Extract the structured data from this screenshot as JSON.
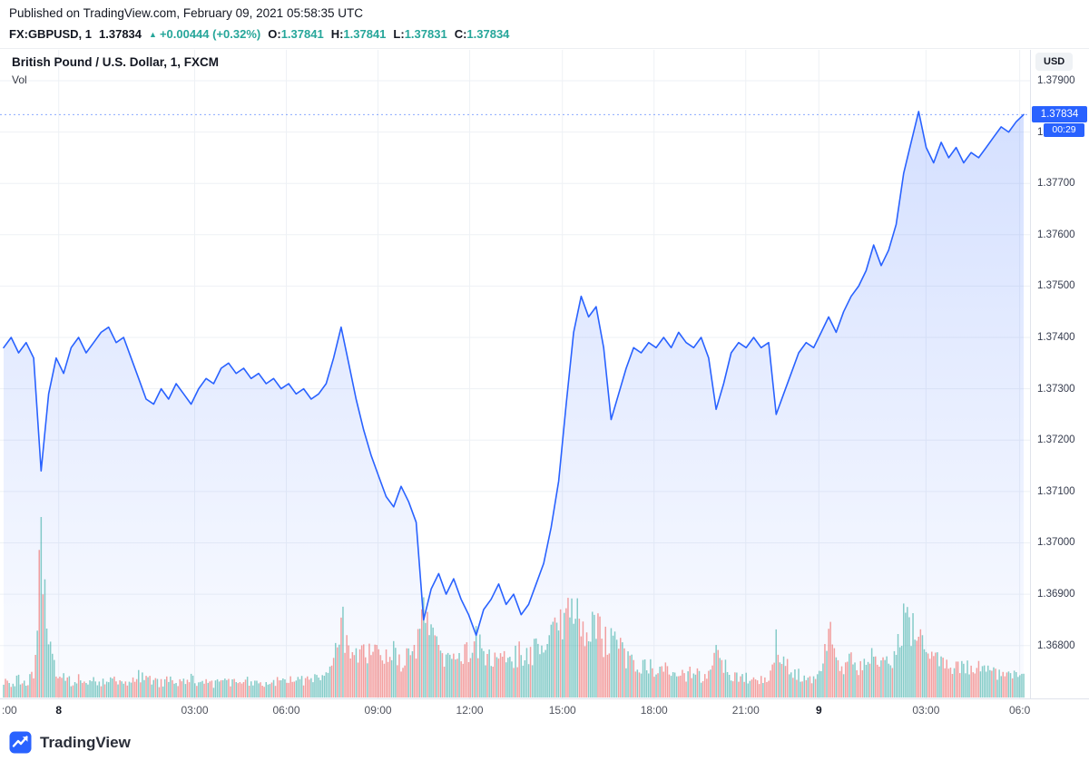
{
  "published_line": "Published on TradingView.com, February 09, 2021 05:58:35 UTC",
  "symbol_bar": {
    "symbol": "FX:GBPUSD, 1",
    "last_price": "1.37834",
    "up_arrow": "▲",
    "change": "+0.00444 (+0.32%)",
    "ohlc": [
      {
        "label": "O:",
        "value": "1.37841"
      },
      {
        "label": "H:",
        "value": "1.37841"
      },
      {
        "label": "L:",
        "value": "1.37831"
      },
      {
        "label": "C:",
        "value": "1.37834"
      }
    ]
  },
  "chart": {
    "legend_title": "British Pound / U.S. Dollar, 1, FXCM",
    "legend_vol": "Vol",
    "currency_button": "USD",
    "price_badge": "1.37834",
    "countdown_badge": "00:29"
  },
  "footer": {
    "brand": "TradingView"
  },
  "colors": {
    "accent_blue": "#2962ff",
    "up_green": "#26a69a",
    "down_red": "#ef5350",
    "axis_text": "#363c4e",
    "grid": "#eef1f5",
    "header_green": "#26a69a"
  },
  "chart_data": {
    "type": "line",
    "title": "British Pound / U.S. Dollar, 1, FXCM",
    "symbol": "FX:GBPUSD",
    "interval": "1",
    "exchange": "FXCM",
    "xlabel": "",
    "ylabel": "",
    "last_price": 1.37834,
    "ylim": [
      1.36697,
      1.3796
    ],
    "series_color": "#2962ff",
    "volume_up_color": "#26a69a",
    "volume_down_color": "#ef5350",
    "grid": true,
    "y_ticks": [
      "1.37900",
      "1.37800",
      "1.37700",
      "1.37600",
      "1.37500",
      "1.37400",
      "1.37300",
      "1.37200",
      "1.37100",
      "1.37000",
      "1.36900",
      "1.36800"
    ],
    "x_ticks": [
      {
        "label": ":00",
        "f": 0.004,
        "day": false
      },
      {
        "label": "8",
        "f": 0.057,
        "day": true
      },
      {
        "label": "03:00",
        "f": 0.189,
        "day": false
      },
      {
        "label": "06:00",
        "f": 0.278,
        "day": false
      },
      {
        "label": "09:00",
        "f": 0.367,
        "day": false
      },
      {
        "label": "12:00",
        "f": 0.456,
        "day": false
      },
      {
        "label": "15:00",
        "f": 0.546,
        "day": false
      },
      {
        "label": "18:00",
        "f": 0.635,
        "day": false
      },
      {
        "label": "21:00",
        "f": 0.724,
        "day": false
      },
      {
        "label": "9",
        "f": 0.795,
        "day": true
      },
      {
        "label": "03:00",
        "f": 0.899,
        "day": false
      },
      {
        "label": "06:0",
        "f": 0.99,
        "day": false
      }
    ],
    "prices": [
      1.3738,
      1.374,
      1.3737,
      1.3739,
      1.3736,
      1.3714,
      1.3729,
      1.3736,
      1.3733,
      1.3738,
      1.374,
      1.3737,
      1.3739,
      1.3741,
      1.3742,
      1.3739,
      1.374,
      1.3736,
      1.3732,
      1.3728,
      1.3727,
      1.373,
      1.3728,
      1.3731,
      1.3729,
      1.3727,
      1.373,
      1.3732,
      1.3731,
      1.3734,
      1.3735,
      1.3733,
      1.3734,
      1.3732,
      1.3733,
      1.3731,
      1.3732,
      1.373,
      1.3731,
      1.3729,
      1.373,
      1.3728,
      1.3729,
      1.3731,
      1.3736,
      1.3742,
      1.3735,
      1.3728,
      1.3722,
      1.3717,
      1.3713,
      1.3709,
      1.3707,
      1.3711,
      1.3708,
      1.3704,
      1.3685,
      1.3691,
      1.3694,
      1.369,
      1.3693,
      1.3689,
      1.3686,
      1.3682,
      1.3687,
      1.3689,
      1.3692,
      1.3688,
      1.369,
      1.3686,
      1.3688,
      1.3692,
      1.3696,
      1.3703,
      1.3712,
      1.3727,
      1.3741,
      1.3748,
      1.3744,
      1.3746,
      1.3738,
      1.3724,
      1.3729,
      1.3734,
      1.3738,
      1.3737,
      1.3739,
      1.3738,
      1.374,
      1.3738,
      1.3741,
      1.3739,
      1.3738,
      1.374,
      1.3736,
      1.3726,
      1.3731,
      1.3737,
      1.3739,
      1.3738,
      1.374,
      1.3738,
      1.3739,
      1.3725,
      1.3729,
      1.3733,
      1.3737,
      1.3739,
      1.3738,
      1.3741,
      1.3744,
      1.3741,
      1.3745,
      1.3748,
      1.375,
      1.3753,
      1.3758,
      1.3754,
      1.3757,
      1.3762,
      1.3772,
      1.3778,
      1.3784,
      1.3777,
      1.3774,
      1.3778,
      1.3775,
      1.3777,
      1.3774,
      1.3776,
      1.3775,
      1.3777,
      1.3779,
      1.3781,
      1.378,
      1.3782,
      1.37834
    ],
    "volumes": [
      0.1,
      0.08,
      0.12,
      0.09,
      0.15,
      1.0,
      0.4,
      0.18,
      0.12,
      0.1,
      0.12,
      0.09,
      0.11,
      0.1,
      0.13,
      0.1,
      0.08,
      0.12,
      0.14,
      0.12,
      0.1,
      0.09,
      0.11,
      0.08,
      0.1,
      0.12,
      0.09,
      0.1,
      0.08,
      0.11,
      0.1,
      0.09,
      0.12,
      0.1,
      0.08,
      0.1,
      0.09,
      0.11,
      0.1,
      0.12,
      0.1,
      0.13,
      0.11,
      0.14,
      0.2,
      0.5,
      0.3,
      0.28,
      0.32,
      0.26,
      0.3,
      0.24,
      0.28,
      0.22,
      0.26,
      0.3,
      0.5,
      0.38,
      0.3,
      0.26,
      0.24,
      0.28,
      0.3,
      0.35,
      0.28,
      0.24,
      0.26,
      0.22,
      0.25,
      0.28,
      0.24,
      0.3,
      0.34,
      0.4,
      0.44,
      0.5,
      0.55,
      0.48,
      0.4,
      0.44,
      0.36,
      0.4,
      0.32,
      0.26,
      0.22,
      0.18,
      0.2,
      0.16,
      0.18,
      0.15,
      0.17,
      0.14,
      0.16,
      0.13,
      0.15,
      0.3,
      0.2,
      0.15,
      0.13,
      0.12,
      0.14,
      0.11,
      0.13,
      0.35,
      0.22,
      0.16,
      0.14,
      0.12,
      0.13,
      0.16,
      0.45,
      0.25,
      0.2,
      0.22,
      0.18,
      0.22,
      0.28,
      0.2,
      0.22,
      0.26,
      0.5,
      0.42,
      0.48,
      0.3,
      0.24,
      0.22,
      0.2,
      0.18,
      0.2,
      0.16,
      0.18,
      0.15,
      0.17,
      0.14,
      0.16,
      0.13,
      0.15
    ]
  }
}
